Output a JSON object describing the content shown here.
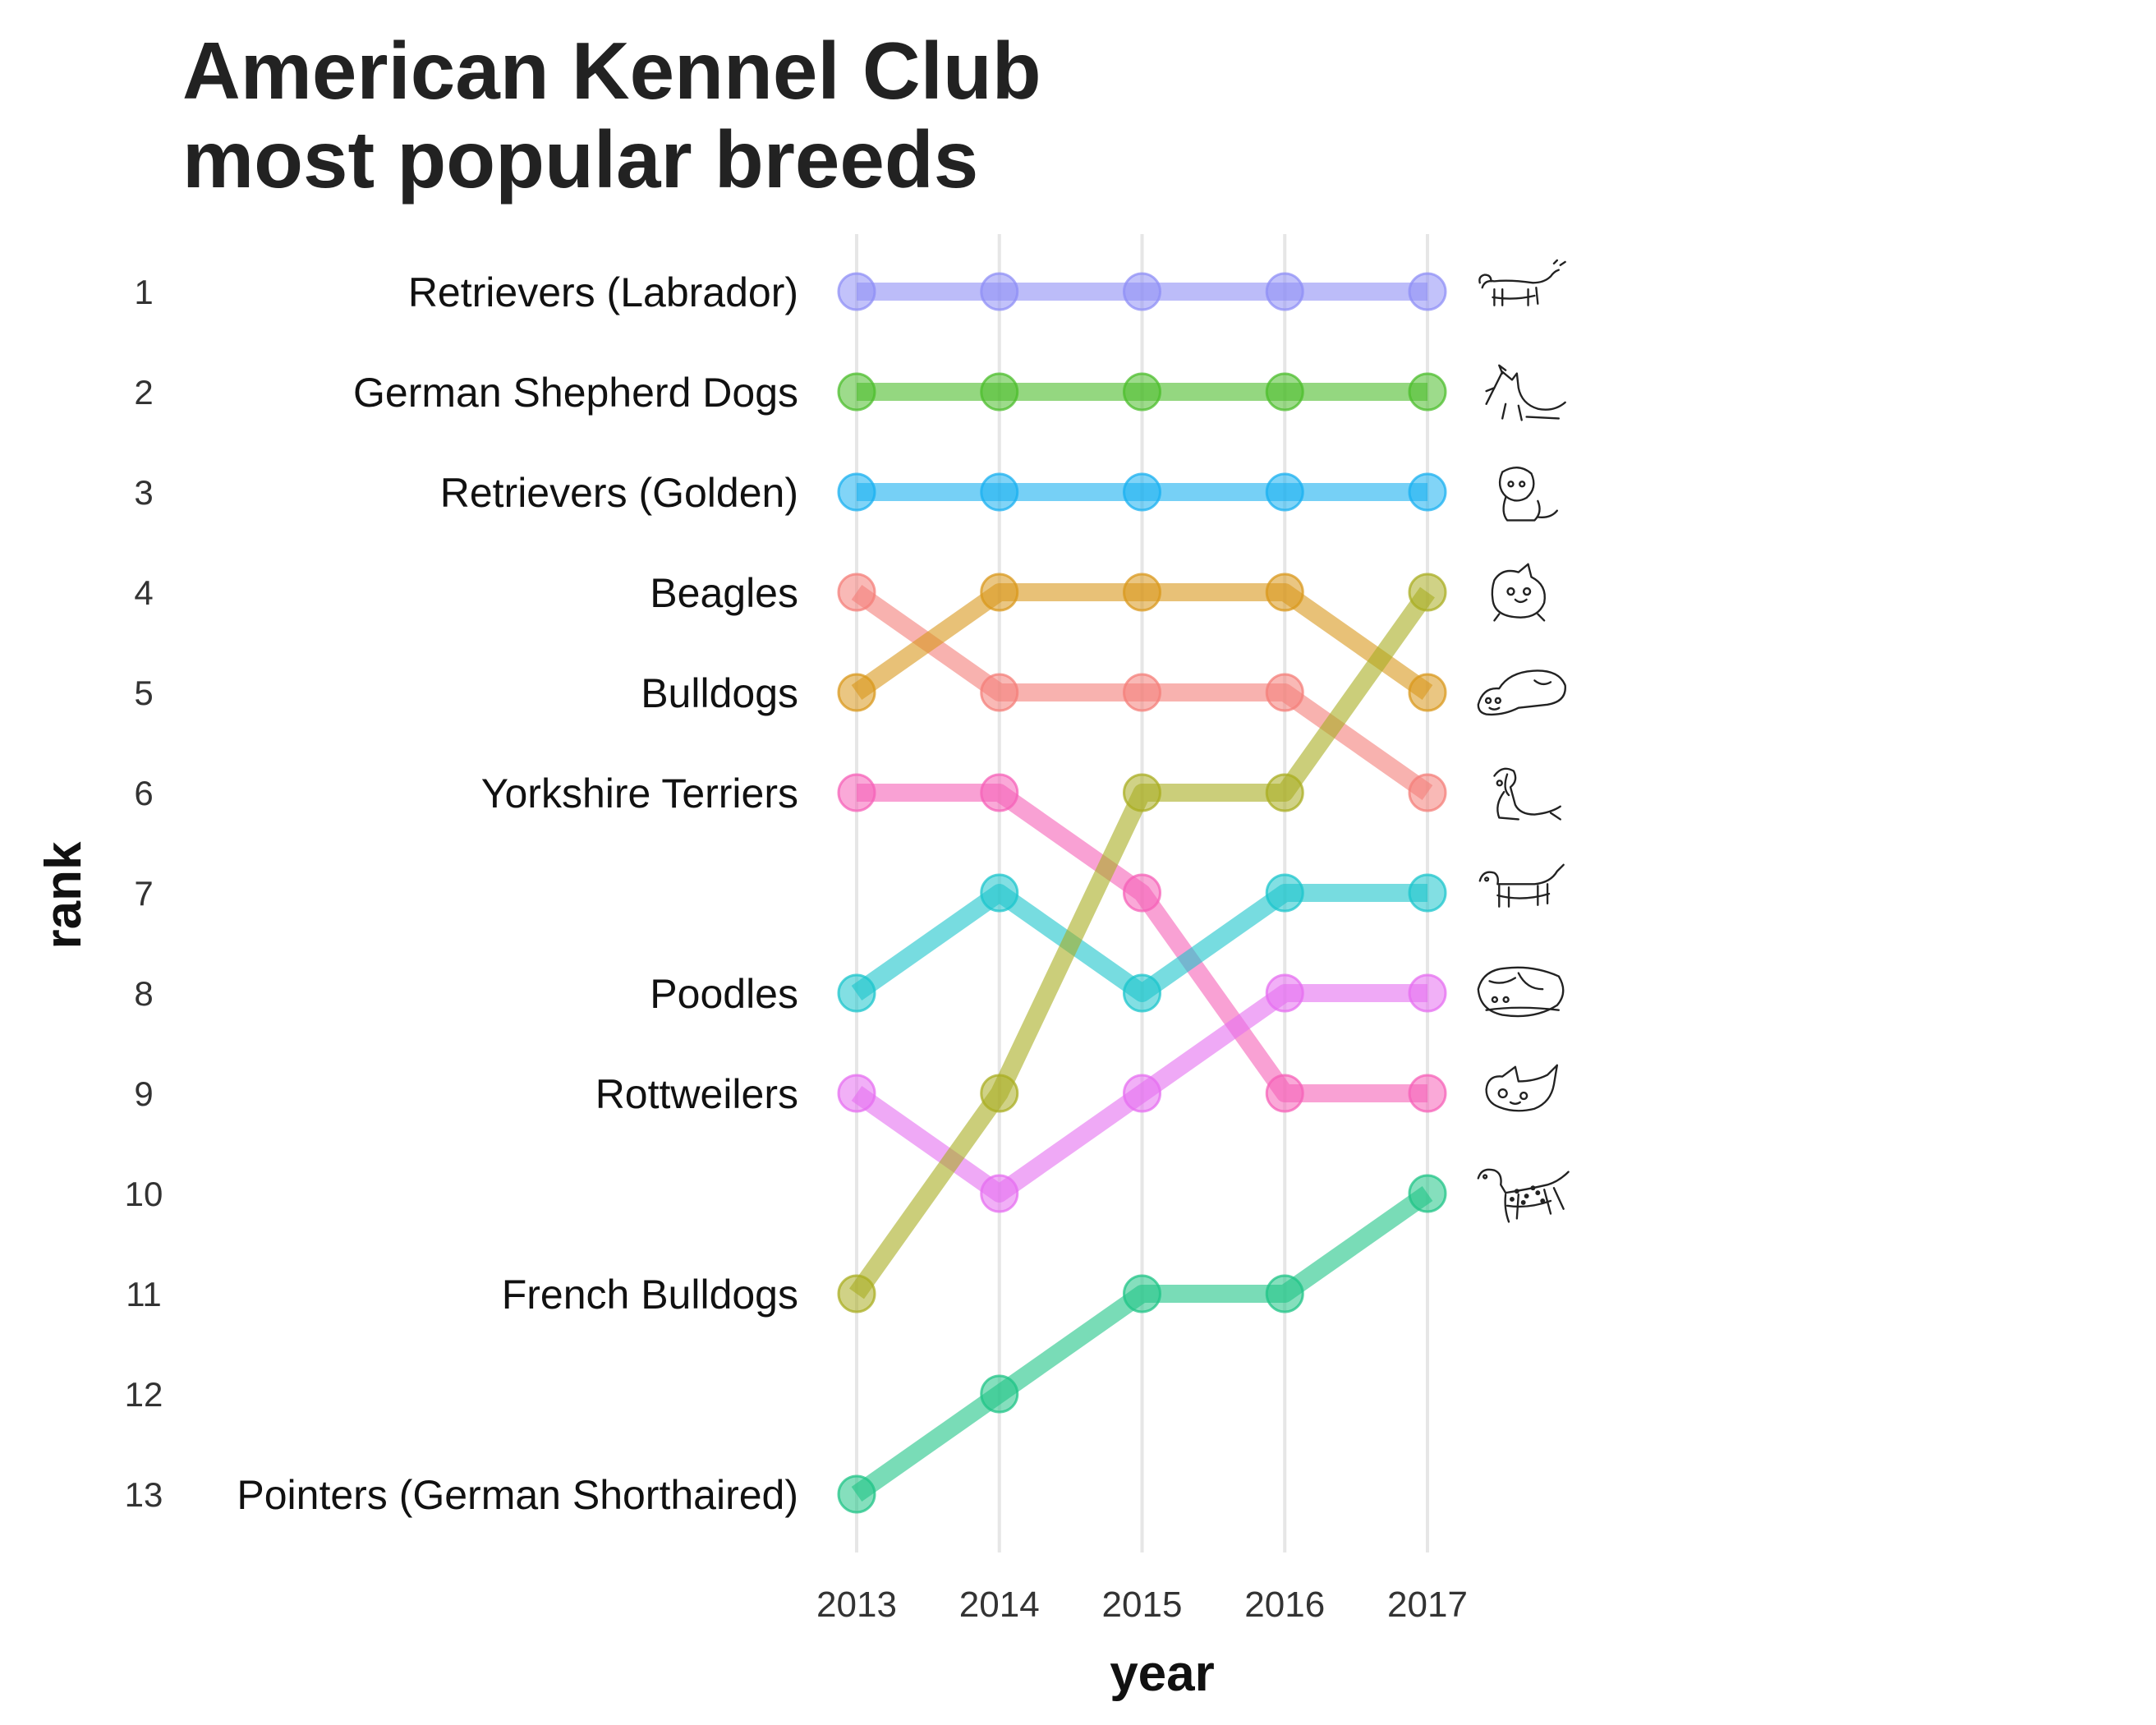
{
  "chart_data": {
    "type": "line",
    "title_lines": [
      "American Kennel Club",
      "most popular breeds"
    ],
    "xlabel": "year",
    "ylabel": "rank",
    "x": [
      2013,
      2014,
      2015,
      2016,
      2017
    ],
    "rank_ticks": [
      1,
      2,
      3,
      4,
      5,
      6,
      7,
      8,
      9,
      10,
      11,
      12,
      13
    ],
    "ylim": [
      1,
      13
    ],
    "y_reversed": true,
    "grid": "vertical lines at each year",
    "legend": "none",
    "series": [
      {
        "label": "Retrievers (Labrador)",
        "values": [
          1,
          1,
          1,
          1,
          1
        ],
        "color": "#8f8ff5"
      },
      {
        "label": "German Shepherd Dogs",
        "values": [
          2,
          2,
          2,
          2,
          2
        ],
        "color": "#4cbd2c"
      },
      {
        "label": "Retrievers (Golden)",
        "values": [
          3,
          3,
          3,
          3,
          3
        ],
        "color": "#1ab0f0"
      },
      {
        "label": "Beagles",
        "values": [
          4,
          5,
          5,
          5,
          6
        ],
        "color": "#f47f7a"
      },
      {
        "label": "Bulldogs",
        "values": [
          5,
          4,
          4,
          4,
          5
        ],
        "color": "#d9981c"
      },
      {
        "label": "Yorkshire Terriers",
        "values": [
          6,
          6,
          7,
          9,
          9
        ],
        "color": "#f562b8"
      },
      {
        "label": "Poodles",
        "values": [
          8,
          7,
          8,
          7,
          7
        ],
        "color": "#1cc5cc"
      },
      {
        "label": "Rottweilers",
        "values": [
          9,
          10,
          9,
          8,
          8
        ],
        "color": "#e56ff0"
      },
      {
        "label": "French Bulldogs",
        "values": [
          11,
          9,
          6,
          6,
          4
        ],
        "color": "#a9ad22"
      },
      {
        "label": "Pointers (German Shorthaired)",
        "values": [
          13,
          12,
          11,
          11,
          10
        ],
        "color": "#20c487"
      }
    ],
    "icons": [
      "lab-dog-icon",
      "shepherd-dog-icon",
      "golden-dog-icon",
      "bulldog-icon",
      "lying-bulldog-icon",
      "sitting-dog-icon",
      "standing-dog-icon",
      "sleeping-dog-icon",
      "small-dog-icon",
      "spotted-dog-icon"
    ]
  }
}
